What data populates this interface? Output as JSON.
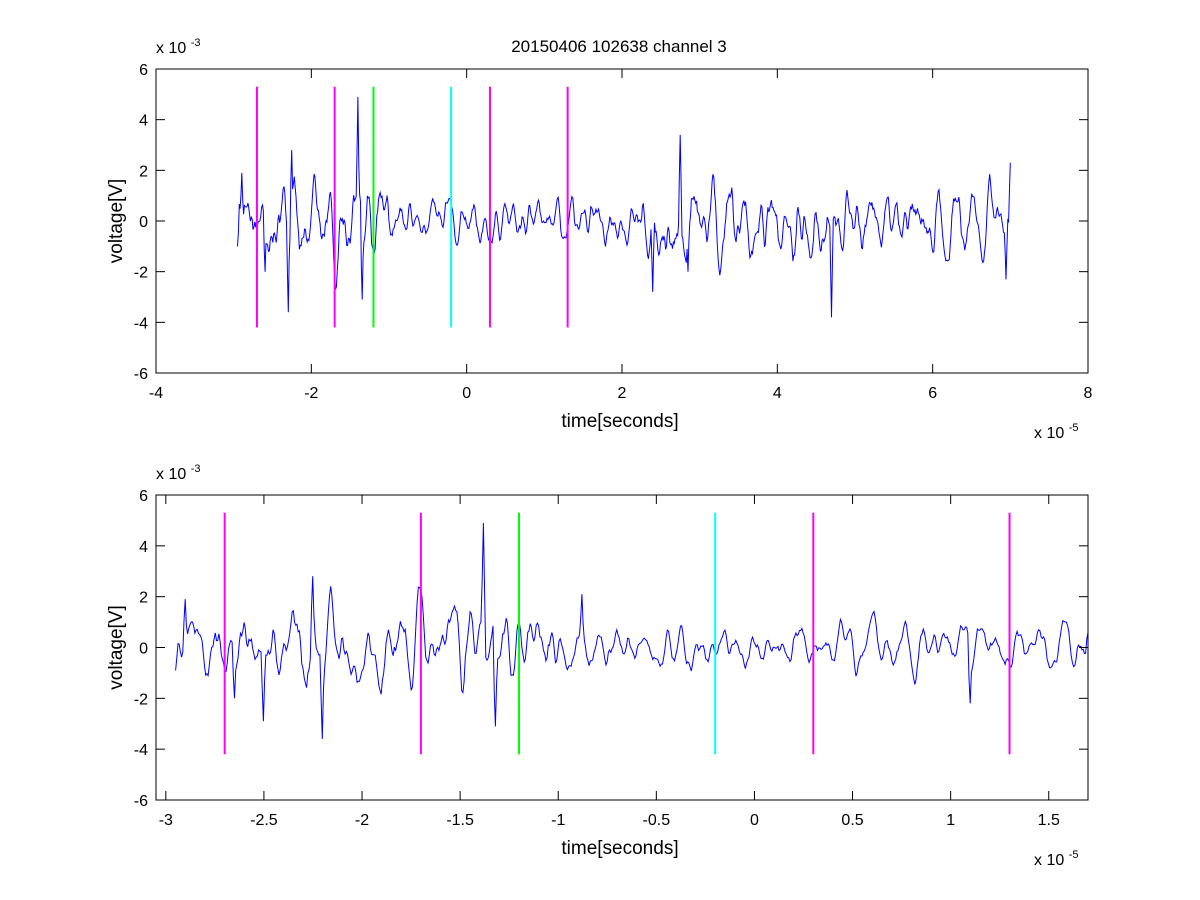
{
  "title": "20150406 102638 channel 3",
  "chart_data": [
    {
      "type": "line",
      "title": "20150406 102638 channel 3",
      "xlabel": "time[seconds]",
      "ylabel": "voltage[V]",
      "x_exponent_label": "x 10",
      "x_exponent": "-5",
      "y_exponent_label": "x 10",
      "y_exponent": "-3",
      "xlim": [
        -4,
        8
      ],
      "ylim": [
        -6,
        6
      ],
      "xticks": [
        "-4",
        "-2",
        "0",
        "2",
        "4",
        "6",
        "8"
      ],
      "yticks": [
        "-6",
        "-4",
        "-2",
        "0",
        "2",
        "4",
        "6"
      ],
      "grid": false,
      "legend": "none",
      "series_color": "#0000ff",
      "x_range_of_signal": [
        -2.95,
        7.0
      ],
      "envelope_points": [
        {
          "x": -2.95,
          "y": -1.0
        },
        {
          "x": -2.9,
          "y": 1.9
        },
        {
          "x": -2.6,
          "y": -2.0
        },
        {
          "x": -2.3,
          "y": -3.6
        },
        {
          "x": -2.25,
          "y": 2.8
        },
        {
          "x": -1.4,
          "y": 4.9
        },
        {
          "x": -1.35,
          "y": -3.1
        },
        {
          "x": 2.4,
          "y": -2.8
        },
        {
          "x": 2.75,
          "y": 3.4
        },
        {
          "x": 2.85,
          "y": -2.0
        },
        {
          "x": 4.7,
          "y": -3.8
        },
        {
          "x": 6.95,
          "y": -2.3
        },
        {
          "x": 7.0,
          "y": 2.3
        }
      ],
      "markers": [
        {
          "x": -2.7,
          "color": "#ff00ff",
          "ymin": -4.2,
          "ymax": 5.3
        },
        {
          "x": -1.7,
          "color": "#ff00ff",
          "ymin": -4.2,
          "ymax": 5.3
        },
        {
          "x": -1.2,
          "color": "#00ff00",
          "ymin": -4.2,
          "ymax": 5.3
        },
        {
          "x": -0.2,
          "color": "#00ffff",
          "ymin": -4.2,
          "ymax": 5.3
        },
        {
          "x": 0.3,
          "color": "#ff00ff",
          "ymin": -4.2,
          "ymax": 5.3
        },
        {
          "x": 1.3,
          "color": "#ff00ff",
          "ymin": -4.2,
          "ymax": 5.3
        }
      ]
    },
    {
      "type": "line",
      "title": "",
      "xlabel": "time[seconds]",
      "ylabel": "voltage[V]",
      "x_exponent_label": "x 10",
      "x_exponent": "-5",
      "y_exponent_label": "x 10",
      "y_exponent": "-3",
      "xlim": [
        -3.05,
        1.7
      ],
      "ylim": [
        -6,
        6
      ],
      "xticks": [
        "-3",
        "-2.5",
        "-2",
        "-1.5",
        "-1",
        "-0.5",
        "0",
        "0.5",
        "1",
        "1.5"
      ],
      "xtick_values": [
        -3,
        -2.5,
        -2,
        -1.5,
        -1,
        -0.5,
        0,
        0.5,
        1,
        1.5
      ],
      "yticks": [
        "-6",
        "-4",
        "-2",
        "0",
        "2",
        "4",
        "6"
      ],
      "grid": false,
      "legend": "none",
      "series_color": "#0000ff",
      "x_range_of_signal": [
        -2.95,
        1.7
      ],
      "envelope_points": [
        {
          "x": -2.95,
          "y": -0.9
        },
        {
          "x": -2.9,
          "y": 1.9
        },
        {
          "x": -2.65,
          "y": -2.0
        },
        {
          "x": -2.5,
          "y": -2.9
        },
        {
          "x": -2.25,
          "y": 2.8
        },
        {
          "x": -2.2,
          "y": -3.6
        },
        {
          "x": -1.38,
          "y": 4.9
        },
        {
          "x": -1.32,
          "y": -3.1
        },
        {
          "x": -0.88,
          "y": 2.1
        },
        {
          "x": 1.1,
          "y": -2.2
        },
        {
          "x": 1.7,
          "y": 0.6
        }
      ],
      "markers": [
        {
          "x": -2.7,
          "color": "#ff00ff",
          "ymin": -4.2,
          "ymax": 5.3
        },
        {
          "x": -1.7,
          "color": "#ff00ff",
          "ymin": -4.2,
          "ymax": 5.3
        },
        {
          "x": -1.2,
          "color": "#00ff00",
          "ymin": -4.2,
          "ymax": 5.3
        },
        {
          "x": -0.2,
          "color": "#00ffff",
          "ymin": -4.2,
          "ymax": 5.3
        },
        {
          "x": 0.3,
          "color": "#ff00ff",
          "ymin": -4.2,
          "ymax": 5.3
        },
        {
          "x": 1.3,
          "color": "#ff00ff",
          "ymin": -4.2,
          "ymax": 5.3
        }
      ]
    }
  ]
}
